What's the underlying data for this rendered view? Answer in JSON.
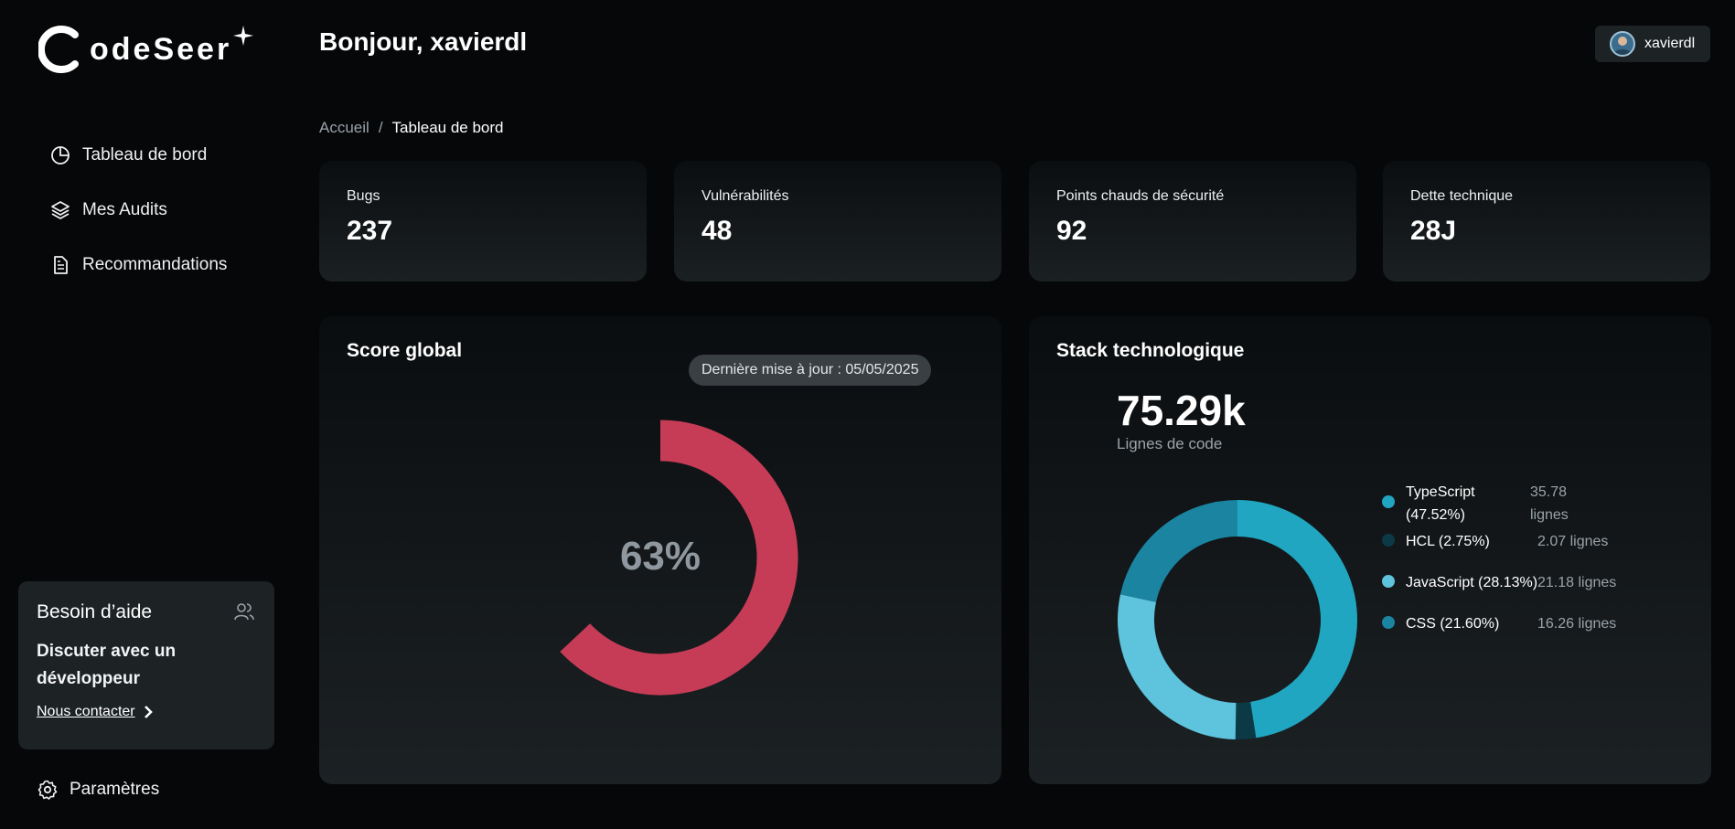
{
  "brand": {
    "logo_text": "odeSeer"
  },
  "sidebar": {
    "items": [
      {
        "label": "Tableau de bord",
        "icon": "pie-chart-icon"
      },
      {
        "label": "Mes Audits",
        "icon": "layers-icon"
      },
      {
        "label": "Recommandations",
        "icon": "document-icon"
      }
    ],
    "help": {
      "title": "Besoin d’aide",
      "subtitle": "Discuter avec un développeur",
      "link": "Nous contacter"
    },
    "settings_label": "Paramètres"
  },
  "header": {
    "greeting": "Bonjour, xavierdl",
    "username": "xavierdl"
  },
  "breadcrumb": {
    "home": "Accueil",
    "separator": "/",
    "current": "Tableau de bord"
  },
  "stats": [
    {
      "label": "Bugs",
      "value": "237"
    },
    {
      "label": "Vulnérabilités",
      "value": "48"
    },
    {
      "label": "Points chauds de sécurité",
      "value": "92"
    },
    {
      "label": "Dette technique",
      "value": "28J"
    }
  ],
  "score": {
    "title": "Score global",
    "updated": "Dernière mise à jour : 05/05/2025",
    "value_text": "63%",
    "value": 0.63,
    "color": "#c63c56"
  },
  "stack": {
    "title": "Stack technologique",
    "lines_value": "75.29k",
    "lines_label": "Lignes de code",
    "languages": [
      {
        "name": "TypeScript (47.52%)",
        "lines": "35.78 lignes",
        "percent": 47.52,
        "color": "#20a6c0"
      },
      {
        "name": "HCL (2.75%)",
        "lines": "2.07 lignes",
        "percent": 2.75,
        "color": "#0b3a46"
      },
      {
        "name": "JavaScript (28.13%)",
        "lines": "21.18 lignes",
        "percent": 28.13,
        "color": "#5ec3dc"
      },
      {
        "name": "CSS (21.60%)",
        "lines": "16.26 lignes",
        "percent": 21.6,
        "color": "#1a84a1"
      }
    ]
  },
  "colors": {
    "background": "#050709",
    "card": "#1d2225",
    "accent": "#20a6c0"
  }
}
